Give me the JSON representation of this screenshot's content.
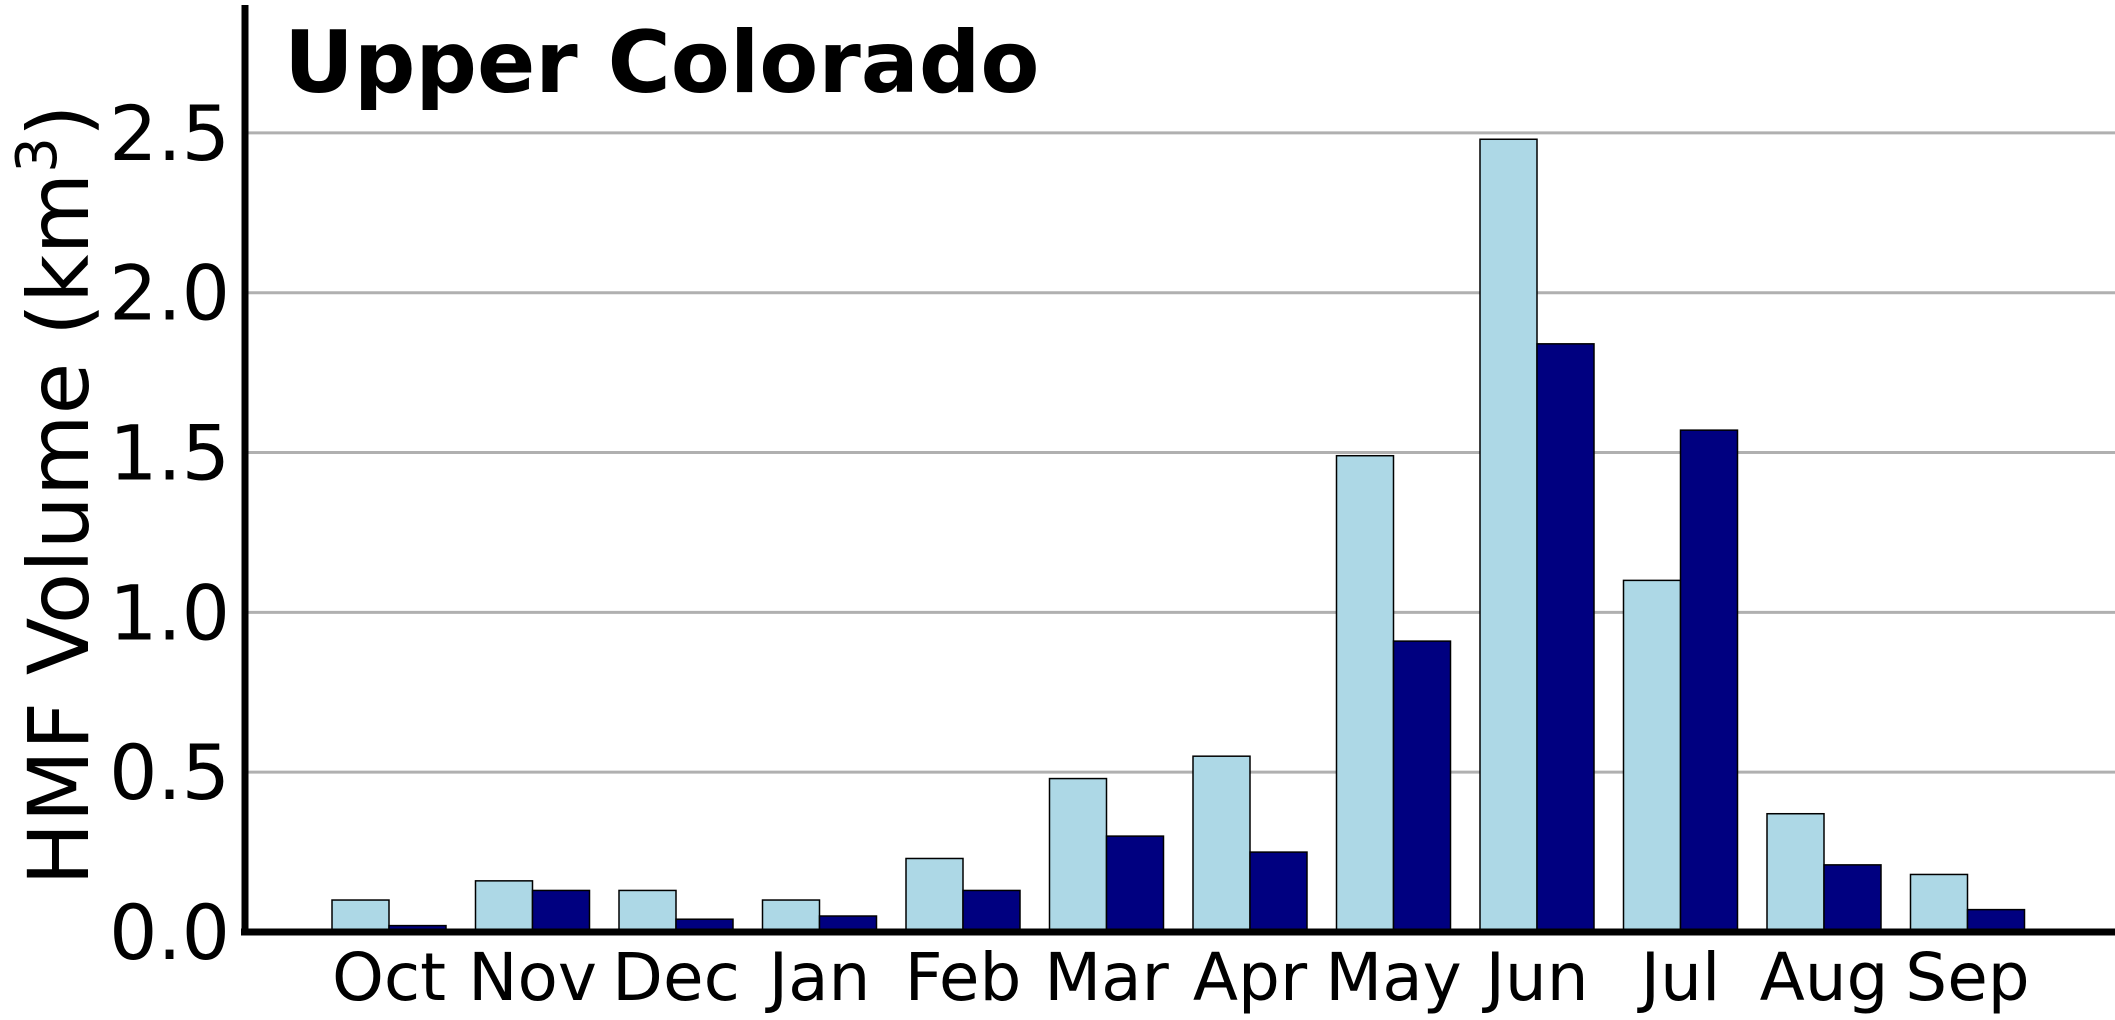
{
  "chart_data": {
    "type": "bar",
    "title": "Upper Colorado",
    "ylabel": "HMF Volume (km",
    "ylabel_sup": "3",
    "ylabel_close": ")",
    "categories": [
      "Oct",
      "Nov",
      "Dec",
      "Jan",
      "Feb",
      "Mar",
      "Apr",
      "May",
      "Jun",
      "Jul",
      "Aug",
      "Sep"
    ],
    "ylim": [
      0,
      2.9
    ],
    "yticks": [
      "0.0",
      "0.5",
      "1.0",
      "1.5",
      "2.0",
      "2.5"
    ],
    "grid": true,
    "legend": "none",
    "series": [
      {
        "color": "#add8e6",
        "values": [
          0.1,
          0.16,
          0.13,
          0.1,
          0.23,
          0.48,
          0.55,
          1.49,
          2.48,
          1.1,
          0.37,
          0.18
        ]
      },
      {
        "color": "#000080",
        "values": [
          0.02,
          0.13,
          0.04,
          0.05,
          0.13,
          0.3,
          0.25,
          0.91,
          1.84,
          1.57,
          0.21,
          0.07
        ]
      }
    ]
  }
}
